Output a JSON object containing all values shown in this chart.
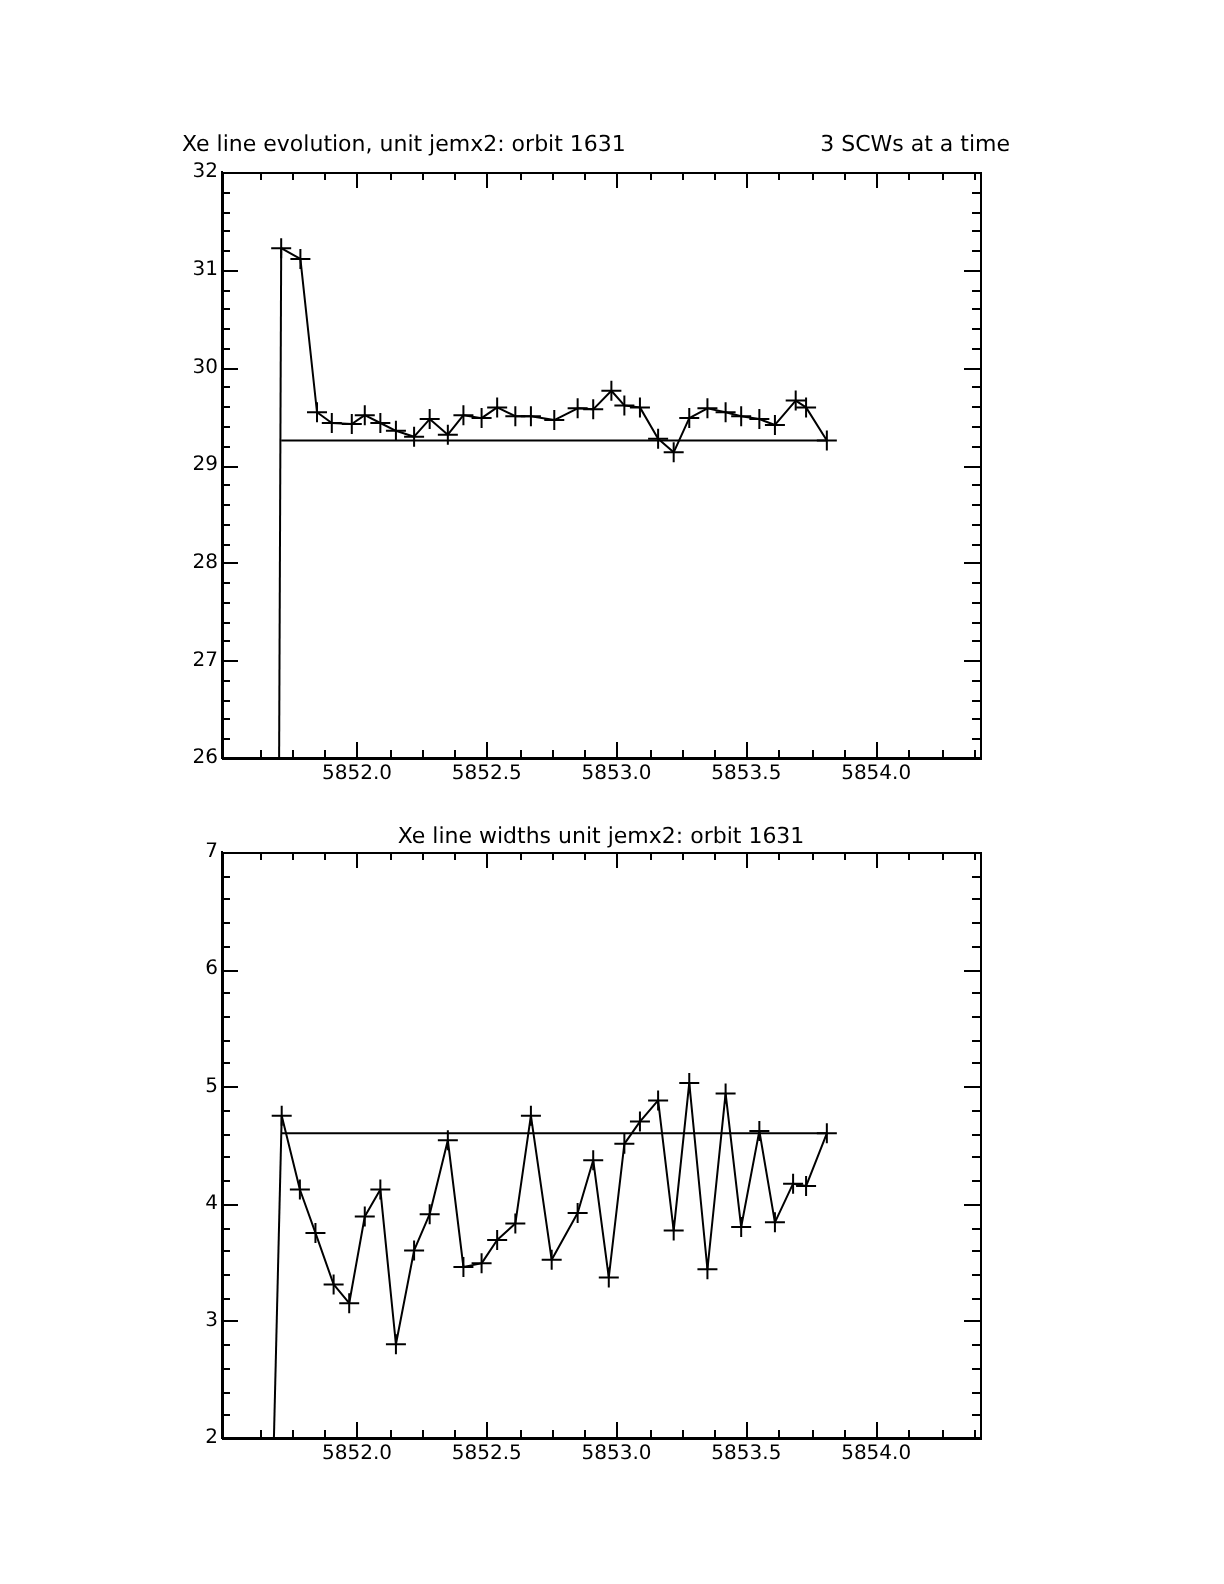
{
  "chart_data": [
    {
      "type": "line",
      "title": "Xe line evolution, unit jemx2: orbit 1631",
      "annotations": [
        "3 SCWs at a time"
      ],
      "marker": "cross",
      "grid": false,
      "legend": false,
      "xlim": [
        5851.48,
        5854.4
      ],
      "xticks": [
        {
          "value": 5851.625,
          "label": null
        },
        {
          "value": 5851.75,
          "label": null
        },
        {
          "value": 5851.875,
          "label": null
        },
        {
          "value": 5852,
          "label": "5852.0"
        },
        {
          "value": 5852.125,
          "label": null
        },
        {
          "value": 5852.25,
          "label": null
        },
        {
          "value": 5852.375,
          "label": null
        },
        {
          "value": 5852.5,
          "label": "5852.5"
        },
        {
          "value": 5852.625,
          "label": null
        },
        {
          "value": 5852.75,
          "label": null
        },
        {
          "value": 5852.875,
          "label": null
        },
        {
          "value": 5853,
          "label": "5853.0"
        },
        {
          "value": 5853.125,
          "label": null
        },
        {
          "value": 5853.25,
          "label": null
        },
        {
          "value": 5853.375,
          "label": null
        },
        {
          "value": 5853.5,
          "label": "5853.5"
        },
        {
          "value": 5853.625,
          "label": null
        },
        {
          "value": 5853.75,
          "label": null
        },
        {
          "value": 5853.875,
          "label": null
        },
        {
          "value": 5854,
          "label": "5854.0"
        },
        {
          "value": 5854.125,
          "label": null
        },
        {
          "value": 5854.25,
          "label": null
        },
        {
          "value": 5854.375,
          "label": null
        }
      ],
      "ylim": [
        26,
        32
      ],
      "yticks": [
        26,
        {
          "value": 26.2,
          "label": null
        },
        {
          "value": 26.4,
          "label": null
        },
        {
          "value": 26.6,
          "label": null
        },
        {
          "value": 26.8,
          "label": null
        },
        27,
        {
          "value": 27.2,
          "label": null
        },
        {
          "value": 27.4,
          "label": null
        },
        {
          "value": 27.6,
          "label": null
        },
        {
          "value": 27.8,
          "label": null
        },
        28,
        {
          "value": 28.2,
          "label": null
        },
        {
          "value": 28.4,
          "label": null
        },
        {
          "value": 28.6,
          "label": null
        },
        {
          "value": 28.8,
          "label": null
        },
        29,
        {
          "value": 29.2,
          "label": null
        },
        {
          "value": 29.4,
          "label": null
        },
        {
          "value": 29.6,
          "label": null
        },
        {
          "value": 29.8,
          "label": null
        },
        30,
        {
          "value": 30.2,
          "label": null
        },
        {
          "value": 30.4,
          "label": null
        },
        {
          "value": 30.6,
          "label": null
        },
        {
          "value": 30.8,
          "label": null
        },
        31,
        {
          "value": 31.2,
          "label": null
        },
        {
          "value": 31.4,
          "label": null
        },
        {
          "value": 31.6,
          "label": null
        },
        {
          "value": 31.8,
          "label": null
        },
        32
      ],
      "series": [
        {
          "color": "#000000",
          "x": [
            5851.708,
            5851.782,
            5851.846,
            5851.903,
            5851.98,
            5852.03,
            5852.09,
            5852.15,
            5852.22,
            5852.28,
            5852.35,
            5852.41,
            5852.48,
            5852.54,
            5852.61,
            5852.67,
            5852.76,
            5852.85,
            5852.91,
            5852.98,
            5853.03,
            5853.09,
            5853.16,
            5853.22,
            5853.28,
            5853.35,
            5853.42,
            5853.48,
            5853.55,
            5853.61,
            5853.69,
            5853.73,
            5853.81
          ],
          "values": [
            31.22,
            31.11,
            29.54,
            29.43,
            29.42,
            29.51,
            29.43,
            29.35,
            29.29,
            29.47,
            29.31,
            29.51,
            29.48,
            29.59,
            29.5,
            29.5,
            29.46,
            29.58,
            29.57,
            29.76,
            29.61,
            29.59,
            29.27,
            29.13,
            29.48,
            29.58,
            29.54,
            29.5,
            29.47,
            29.41,
            29.66,
            29.59,
            29.25
          ]
        },
        {
          "color": "#000000",
          "marker": "none",
          "x": [
            5851.7,
            5851.708
          ],
          "values": [
            26,
            31.22
          ]
        },
        {
          "color": "#000000",
          "marker": "none",
          "x": [
            5851.708,
            5853.81
          ],
          "values": [
            29.25,
            29.25
          ]
        }
      ]
    },
    {
      "type": "line",
      "title": "Xe line widths unit jemx2: orbit 1631",
      "marker": "cross",
      "grid": false,
      "legend": false,
      "xlim": [
        5851.48,
        5854.4
      ],
      "xticks": [
        {
          "value": 5851.625,
          "label": null
        },
        {
          "value": 5851.75,
          "label": null
        },
        {
          "value": 5851.875,
          "label": null
        },
        {
          "value": 5852,
          "label": "5852.0"
        },
        {
          "value": 5852.125,
          "label": null
        },
        {
          "value": 5852.25,
          "label": null
        },
        {
          "value": 5852.375,
          "label": null
        },
        {
          "value": 5852.5,
          "label": "5852.5"
        },
        {
          "value": 5852.625,
          "label": null
        },
        {
          "value": 5852.75,
          "label": null
        },
        {
          "value": 5852.875,
          "label": null
        },
        {
          "value": 5853,
          "label": "5853.0"
        },
        {
          "value": 5853.125,
          "label": null
        },
        {
          "value": 5853.25,
          "label": null
        },
        {
          "value": 5853.375,
          "label": null
        },
        {
          "value": 5853.5,
          "label": "5853.5"
        },
        {
          "value": 5853.625,
          "label": null
        },
        {
          "value": 5853.75,
          "label": null
        },
        {
          "value": 5853.875,
          "label": null
        },
        {
          "value": 5854,
          "label": "5854.0"
        },
        {
          "value": 5854.125,
          "label": null
        },
        {
          "value": 5854.25,
          "label": null
        },
        {
          "value": 5854.375,
          "label": null
        }
      ],
      "ylim": [
        2,
        7
      ],
      "yticks": [
        2,
        {
          "value": 2.2,
          "label": null
        },
        {
          "value": 2.4,
          "label": null
        },
        {
          "value": 2.6,
          "label": null
        },
        {
          "value": 2.8,
          "label": null
        },
        3,
        {
          "value": 3.2,
          "label": null
        },
        {
          "value": 3.4,
          "label": null
        },
        {
          "value": 3.6,
          "label": null
        },
        {
          "value": 3.8,
          "label": null
        },
        4,
        {
          "value": 4.2,
          "label": null
        },
        {
          "value": 4.4,
          "label": null
        },
        {
          "value": 4.6,
          "label": null
        },
        {
          "value": 4.8,
          "label": null
        },
        5,
        {
          "value": 5.2,
          "label": null
        },
        {
          "value": 5.4,
          "label": null
        },
        {
          "value": 5.6,
          "label": null
        },
        {
          "value": 5.8,
          "label": null
        },
        6,
        {
          "value": 6.2,
          "label": null
        },
        {
          "value": 6.4,
          "label": null
        },
        {
          "value": 6.6,
          "label": null
        },
        {
          "value": 6.8,
          "label": null
        },
        7
      ],
      "series": [
        {
          "color": "#000000",
          "x": [
            5851.71,
            5851.78,
            5851.84,
            5851.91,
            5851.97,
            5852.03,
            5852.09,
            5852.15,
            5852.22,
            5852.28,
            5852.35,
            5852.41,
            5852.48,
            5852.54,
            5852.61,
            5852.67,
            5852.75,
            5852.85,
            5852.91,
            5852.97,
            5853.03,
            5853.09,
            5853.16,
            5853.22,
            5853.28,
            5853.35,
            5853.42,
            5853.48,
            5853.55,
            5853.61,
            5853.68,
            5853.73,
            5853.81
          ],
          "values": [
            4.75,
            4.12,
            3.75,
            3.31,
            3.15,
            3.89,
            4.12,
            2.8,
            3.6,
            3.91,
            4.54,
            3.46,
            3.49,
            3.69,
            3.83,
            4.75,
            3.52,
            3.92,
            4.37,
            3.37,
            4.51,
            4.7,
            4.88,
            3.77,
            5.03,
            3.44,
            4.94,
            3.8,
            4.62,
            3.84,
            4.17,
            4.15,
            4.6
          ]
        },
        {
          "color": "#000000",
          "marker": "none",
          "x": [
            5851.68,
            5851.71
          ],
          "values": [
            2,
            4.75
          ]
        },
        {
          "color": "#000000",
          "marker": "none",
          "x": [
            5851.71,
            5853.81
          ],
          "values": [
            4.6,
            4.6
          ]
        }
      ]
    }
  ]
}
